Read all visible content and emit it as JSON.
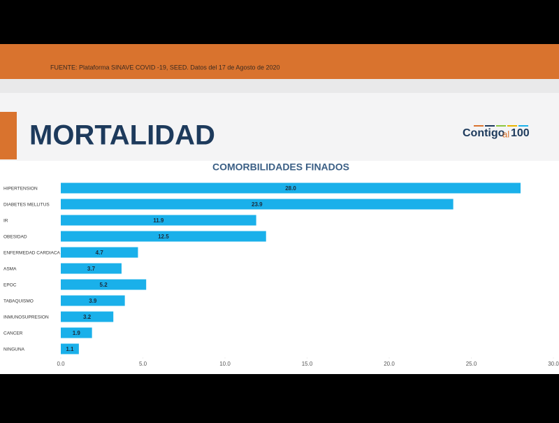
{
  "header": {
    "source": "FUENTE: Plataforma SINAVE COVID -19, SEED. Datos del 17 de Agosto de 2020",
    "title": "MORTALIDAD",
    "logo": {
      "part1": "Contigo",
      "part2": "al",
      "part3": "100"
    }
  },
  "chart_data": {
    "type": "bar",
    "orientation": "horizontal",
    "title": "COMORBILIDADES FINADOS",
    "categories": [
      "HIPERTENSION",
      "DIABETES MELLITUS",
      "IR",
      "OBESIDAD",
      "ENFERMEDAD CARDIACA",
      "ASMA",
      "EPOC",
      "TABAQUISMO",
      "INMUNOSUPRESION",
      "CANCER",
      "NINGUNA"
    ],
    "values": [
      28,
      23.9,
      11.9,
      12.5,
      4.7,
      3.7,
      5.2,
      3.9,
      3.2,
      1.9,
      1.1
    ],
    "value_labels": [
      "28.0",
      "23.9",
      "11.9",
      "12.5",
      "4.7",
      "3.7",
      "5.2",
      "3.9",
      "3.2",
      "1.9",
      "1.1"
    ],
    "color": "#1ab0ea",
    "xlim": [
      0,
      30
    ],
    "xticks": [
      {
        "value": 0,
        "label": "0.0"
      },
      {
        "value": 5,
        "label": "5.0"
      },
      {
        "value": 10,
        "label": "10.0"
      },
      {
        "value": 15,
        "label": "15.0"
      },
      {
        "value": 20,
        "label": "20.0"
      },
      {
        "value": 25,
        "label": "25.0"
      },
      {
        "value": 30,
        "label": "30.0"
      }
    ],
    "grid": false
  }
}
